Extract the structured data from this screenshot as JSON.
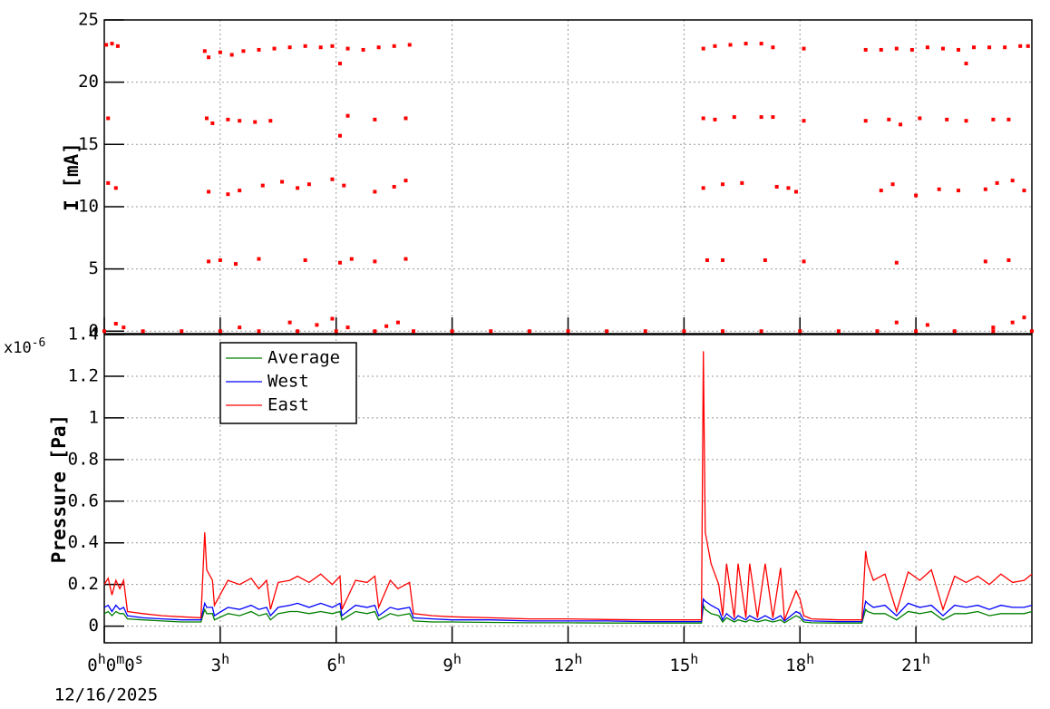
{
  "chart_data": [
    {
      "type": "scatter",
      "ylabel": "I [mA]",
      "color": "#ff0000",
      "xlim": [
        0,
        24
      ],
      "ylim": [
        -0.2,
        25
      ],
      "xticks": [
        0,
        3,
        6,
        9,
        12,
        15,
        18,
        21
      ],
      "yticks": [
        0,
        5,
        10,
        15,
        20,
        25
      ],
      "grid": true,
      "x": [
        0.05,
        0.2,
        0.35,
        2.6,
        2.7,
        3.0,
        3.3,
        3.6,
        4.0,
        4.4,
        4.8,
        5.2,
        5.6,
        5.9,
        6.1,
        6.3,
        6.7,
        7.1,
        7.5,
        7.9,
        15.5,
        15.8,
        16.2,
        16.6,
        17.0,
        17.3,
        18.1,
        19.7,
        20.1,
        20.5,
        20.9,
        21.3,
        21.7,
        22.1,
        22.3,
        22.5,
        22.9,
        23.3,
        23.7,
        23.9,
        0.1,
        2.65,
        2.8,
        3.2,
        3.5,
        3.9,
        4.3,
        6.1,
        6.3,
        7.0,
        7.8,
        15.5,
        15.8,
        16.3,
        17.0,
        17.3,
        18.1,
        19.7,
        20.3,
        20.6,
        21.1,
        21.8,
        22.3,
        23.0,
        23.4,
        0.1,
        0.3,
        2.7,
        3.2,
        3.5,
        4.1,
        4.6,
        5.0,
        5.3,
        5.9,
        6.2,
        7.0,
        7.5,
        7.8,
        15.5,
        16.0,
        16.5,
        17.4,
        17.7,
        17.9,
        20.1,
        20.4,
        21.0,
        21.6,
        22.1,
        22.8,
        23.1,
        23.5,
        23.8,
        2.7,
        3.0,
        3.4,
        4.0,
        5.2,
        6.1,
        6.4,
        7.0,
        7.8,
        15.6,
        16.0,
        17.1,
        18.1,
        20.5,
        22.8,
        23.4,
        0.3,
        0.5,
        3.5,
        4.8,
        5.5,
        5.9,
        6.3,
        7.3,
        7.6,
        20.5,
        21.3,
        23.0,
        23.5,
        23.8,
        0,
        1,
        2,
        3,
        4,
        5,
        6,
        7,
        8,
        9,
        10,
        11,
        12,
        13,
        14,
        15,
        16,
        17,
        18,
        19,
        20,
        21,
        22,
        23,
        24
      ],
      "values": [
        23.0,
        23.1,
        22.9,
        22.5,
        22.0,
        22.4,
        22.2,
        22.5,
        22.6,
        22.7,
        22.8,
        22.9,
        22.8,
        22.9,
        21.5,
        22.7,
        22.6,
        22.8,
        22.9,
        23.0,
        22.7,
        22.9,
        23.0,
        23.1,
        23.1,
        22.8,
        22.7,
        22.6,
        22.6,
        22.7,
        22.6,
        22.8,
        22.7,
        22.6,
        21.5,
        22.8,
        22.8,
        22.8,
        22.9,
        22.9,
        17.1,
        17.1,
        16.7,
        17.0,
        16.9,
        16.8,
        16.9,
        15.7,
        17.3,
        17.0,
        17.1,
        17.1,
        17.0,
        17.2,
        17.2,
        17.2,
        16.9,
        16.9,
        17.0,
        16.6,
        17.1,
        17.0,
        16.9,
        17.0,
        17.0,
        11.9,
        11.5,
        11.2,
        11.0,
        11.3,
        11.7,
        12.0,
        11.5,
        11.8,
        12.2,
        11.7,
        11.2,
        11.6,
        12.1,
        11.5,
        11.8,
        11.9,
        11.6,
        11.5,
        11.2,
        11.3,
        11.8,
        10.9,
        11.4,
        11.3,
        11.4,
        11.9,
        12.1,
        11.3,
        5.6,
        5.7,
        5.4,
        5.8,
        5.7,
        5.5,
        5.8,
        5.6,
        5.8,
        5.7,
        5.7,
        5.7,
        5.6,
        5.5,
        5.6,
        5.7,
        0.6,
        0.3,
        0.3,
        0.7,
        0.5,
        1.0,
        0.3,
        0.4,
        0.7,
        0.7,
        0.5,
        0.3,
        0.7,
        1.1,
        0,
        0,
        0,
        0,
        0,
        0,
        0,
        0,
        0,
        0,
        0,
        0,
        0,
        0,
        0,
        0,
        0,
        0,
        0,
        0,
        0,
        0,
        0,
        0,
        0
      ]
    },
    {
      "type": "line",
      "ylabel": "Pressure [Pa]",
      "y_multiplier": {
        "base": "x10",
        "exponent": "-6"
      },
      "x_date": "12/16/2025",
      "legend": "top-left",
      "xlim": [
        0,
        24
      ],
      "ylim": [
        -0.08,
        1.4
      ],
      "yticks": [
        0,
        0.2,
        0.4,
        0.6,
        0.8,
        1,
        1.2,
        1.4
      ],
      "grid": true,
      "xticks": [
        {
          "value": 0,
          "label": "0h0m0s"
        },
        {
          "value": 3,
          "label": "3h"
        },
        {
          "value": 6,
          "label": "6h"
        },
        {
          "value": 9,
          "label": "9h"
        },
        {
          "value": 12,
          "label": "12h"
        },
        {
          "value": 15,
          "label": "15h"
        },
        {
          "value": 18,
          "label": "18h"
        },
        {
          "value": 21,
          "label": "21h"
        }
      ],
      "x": [
        0,
        0.1,
        0.2,
        0.3,
        0.4,
        0.5,
        0.6,
        1.0,
        1.5,
        2.0,
        2.5,
        2.6,
        2.65,
        2.8,
        2.85,
        3.2,
        3.5,
        3.8,
        4.0,
        4.2,
        4.3,
        4.5,
        4.8,
        5.0,
        5.3,
        5.6,
        5.9,
        6.1,
        6.15,
        6.5,
        6.8,
        7.0,
        7.1,
        7.4,
        7.6,
        7.9,
        8.0,
        8.5,
        9,
        10,
        11,
        12,
        13,
        14,
        15,
        15.45,
        15.5,
        15.55,
        15.7,
        15.9,
        16.0,
        16.1,
        16.3,
        16.4,
        16.6,
        16.7,
        16.9,
        17.1,
        17.3,
        17.5,
        17.6,
        17.9,
        18.0,
        18.1,
        18.3,
        19,
        19.6,
        19.7,
        19.75,
        19.9,
        20.2,
        20.5,
        20.8,
        21.1,
        21.4,
        21.7,
        22.0,
        22.3,
        22.6,
        22.9,
        23.2,
        23.5,
        23.8,
        24
      ],
      "series": [
        {
          "name": "Average",
          "color": "#008000",
          "values": [
            0.06,
            0.07,
            0.05,
            0.07,
            0.06,
            0.06,
            0.035,
            0.03,
            0.025,
            0.02,
            0.02,
            0.08,
            0.06,
            0.06,
            0.03,
            0.06,
            0.05,
            0.07,
            0.05,
            0.06,
            0.03,
            0.06,
            0.07,
            0.07,
            0.06,
            0.07,
            0.06,
            0.07,
            0.03,
            0.07,
            0.06,
            0.07,
            0.03,
            0.06,
            0.05,
            0.06,
            0.025,
            0.02,
            0.02,
            0.018,
            0.016,
            0.016,
            0.015,
            0.015,
            0.015,
            0.015,
            0.1,
            0.08,
            0.06,
            0.05,
            0.02,
            0.04,
            0.02,
            0.03,
            0.02,
            0.03,
            0.02,
            0.03,
            0.02,
            0.03,
            0.016,
            0.05,
            0.04,
            0.02,
            0.016,
            0.015,
            0.015,
            0.08,
            0.07,
            0.06,
            0.06,
            0.03,
            0.07,
            0.06,
            0.07,
            0.03,
            0.06,
            0.06,
            0.07,
            0.05,
            0.06,
            0.06,
            0.06,
            0.07
          ]
        },
        {
          "name": "West",
          "color": "#0000ff",
          "values": [
            0.09,
            0.1,
            0.07,
            0.1,
            0.08,
            0.09,
            0.05,
            0.04,
            0.035,
            0.03,
            0.03,
            0.11,
            0.09,
            0.09,
            0.05,
            0.09,
            0.08,
            0.1,
            0.08,
            0.09,
            0.05,
            0.09,
            0.1,
            0.11,
            0.09,
            0.11,
            0.09,
            0.11,
            0.05,
            0.1,
            0.09,
            0.1,
            0.05,
            0.09,
            0.08,
            0.09,
            0.04,
            0.035,
            0.03,
            0.03,
            0.025,
            0.025,
            0.025,
            0.022,
            0.022,
            0.022,
            0.13,
            0.12,
            0.1,
            0.08,
            0.03,
            0.06,
            0.03,
            0.05,
            0.03,
            0.05,
            0.03,
            0.05,
            0.03,
            0.05,
            0.025,
            0.07,
            0.06,
            0.03,
            0.025,
            0.022,
            0.022,
            0.12,
            0.11,
            0.09,
            0.1,
            0.05,
            0.11,
            0.09,
            0.1,
            0.05,
            0.1,
            0.09,
            0.1,
            0.08,
            0.1,
            0.09,
            0.09,
            0.1
          ]
        },
        {
          "name": "East",
          "color": "#ff0000",
          "values": [
            0.2,
            0.23,
            0.15,
            0.22,
            0.18,
            0.22,
            0.07,
            0.06,
            0.05,
            0.045,
            0.04,
            0.45,
            0.27,
            0.22,
            0.1,
            0.22,
            0.2,
            0.23,
            0.18,
            0.22,
            0.08,
            0.21,
            0.22,
            0.24,
            0.21,
            0.25,
            0.2,
            0.24,
            0.08,
            0.22,
            0.21,
            0.24,
            0.09,
            0.22,
            0.18,
            0.21,
            0.06,
            0.05,
            0.045,
            0.04,
            0.035,
            0.035,
            0.032,
            0.03,
            0.03,
            0.03,
            1.32,
            0.45,
            0.3,
            0.2,
            0.05,
            0.3,
            0.04,
            0.3,
            0.04,
            0.3,
            0.04,
            0.3,
            0.04,
            0.28,
            0.03,
            0.17,
            0.13,
            0.05,
            0.035,
            0.03,
            0.03,
            0.36,
            0.3,
            0.22,
            0.25,
            0.07,
            0.26,
            0.22,
            0.27,
            0.08,
            0.24,
            0.21,
            0.24,
            0.2,
            0.25,
            0.21,
            0.22,
            0.25
          ]
        }
      ]
    }
  ]
}
